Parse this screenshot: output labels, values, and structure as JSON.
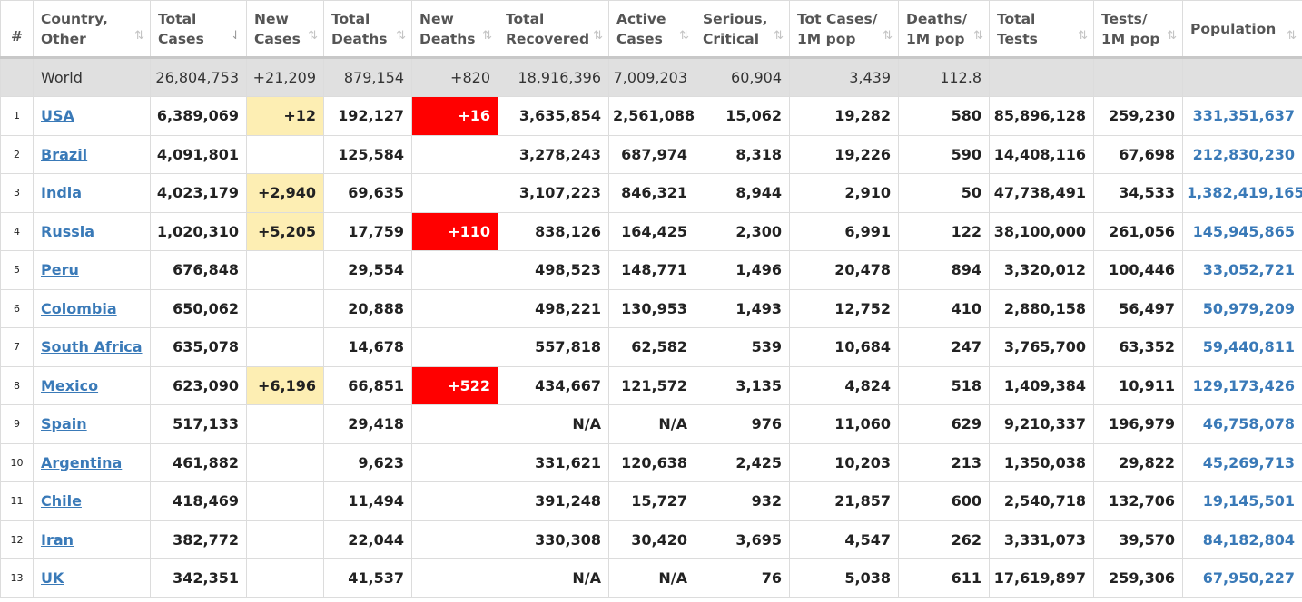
{
  "headers": [
    {
      "label": "#",
      "sort": ""
    },
    {
      "label": "Country,\nOther",
      "sort": "⇅"
    },
    {
      "label": "Total\nCases",
      "sort": "⇃",
      "active": true
    },
    {
      "label": "New\nCases",
      "sort": "⇅"
    },
    {
      "label": "Total\nDeaths",
      "sort": "⇅"
    },
    {
      "label": "New\nDeaths",
      "sort": "⇅"
    },
    {
      "label": "Total\nRecovered",
      "sort": "⇅"
    },
    {
      "label": "Active\nCases",
      "sort": "⇅"
    },
    {
      "label": "Serious,\nCritical",
      "sort": "⇅"
    },
    {
      "label": "Tot Cases/\n1M pop",
      "sort": "⇅"
    },
    {
      "label": "Deaths/\n1M pop",
      "sort": "⇅"
    },
    {
      "label": "Total\nTests",
      "sort": "⇅"
    },
    {
      "label": "Tests/\n1M pop",
      "sort": "⇅"
    },
    {
      "label": "Population",
      "sort": "⇅"
    }
  ],
  "world": {
    "country": "World",
    "total_cases": "26,804,753",
    "new_cases": "+21,209",
    "total_deaths": "879,154",
    "new_deaths": "+820",
    "total_recovered": "18,916,396",
    "active_cases": "7,009,203",
    "serious": "60,904",
    "cases_per_m": "3,439",
    "deaths_per_m": "112.8",
    "total_tests": "",
    "tests_per_m": "",
    "population": ""
  },
  "rows": [
    {
      "idx": "1",
      "country": "USA",
      "total_cases": "6,389,069",
      "new_cases": "+12",
      "total_deaths": "192,127",
      "new_deaths": "+16",
      "total_recovered": "3,635,854",
      "active_cases": "2,561,088",
      "serious": "15,062",
      "cases_per_m": "19,282",
      "deaths_per_m": "580",
      "total_tests": "85,896,128",
      "tests_per_m": "259,230",
      "population": "331,351,637"
    },
    {
      "idx": "2",
      "country": "Brazil",
      "total_cases": "4,091,801",
      "new_cases": "",
      "total_deaths": "125,584",
      "new_deaths": "",
      "total_recovered": "3,278,243",
      "active_cases": "687,974",
      "serious": "8,318",
      "cases_per_m": "19,226",
      "deaths_per_m": "590",
      "total_tests": "14,408,116",
      "tests_per_m": "67,698",
      "population": "212,830,230"
    },
    {
      "idx": "3",
      "country": "India",
      "total_cases": "4,023,179",
      "new_cases": "+2,940",
      "total_deaths": "69,635",
      "new_deaths": "",
      "total_recovered": "3,107,223",
      "active_cases": "846,321",
      "serious": "8,944",
      "cases_per_m": "2,910",
      "deaths_per_m": "50",
      "total_tests": "47,738,491",
      "tests_per_m": "34,533",
      "population": "1,382,419,165"
    },
    {
      "idx": "4",
      "country": "Russia",
      "total_cases": "1,020,310",
      "new_cases": "+5,205",
      "total_deaths": "17,759",
      "new_deaths": "+110",
      "total_recovered": "838,126",
      "active_cases": "164,425",
      "serious": "2,300",
      "cases_per_m": "6,991",
      "deaths_per_m": "122",
      "total_tests": "38,100,000",
      "tests_per_m": "261,056",
      "population": "145,945,865"
    },
    {
      "idx": "5",
      "country": "Peru",
      "total_cases": "676,848",
      "new_cases": "",
      "total_deaths": "29,554",
      "new_deaths": "",
      "total_recovered": "498,523",
      "active_cases": "148,771",
      "serious": "1,496",
      "cases_per_m": "20,478",
      "deaths_per_m": "894",
      "total_tests": "3,320,012",
      "tests_per_m": "100,446",
      "population": "33,052,721"
    },
    {
      "idx": "6",
      "country": "Colombia",
      "total_cases": "650,062",
      "new_cases": "",
      "total_deaths": "20,888",
      "new_deaths": "",
      "total_recovered": "498,221",
      "active_cases": "130,953",
      "serious": "1,493",
      "cases_per_m": "12,752",
      "deaths_per_m": "410",
      "total_tests": "2,880,158",
      "tests_per_m": "56,497",
      "population": "50,979,209"
    },
    {
      "idx": "7",
      "country": "South Africa",
      "total_cases": "635,078",
      "new_cases": "",
      "total_deaths": "14,678",
      "new_deaths": "",
      "total_recovered": "557,818",
      "active_cases": "62,582",
      "serious": "539",
      "cases_per_m": "10,684",
      "deaths_per_m": "247",
      "total_tests": "3,765,700",
      "tests_per_m": "63,352",
      "population": "59,440,811"
    },
    {
      "idx": "8",
      "country": "Mexico",
      "total_cases": "623,090",
      "new_cases": "+6,196",
      "total_deaths": "66,851",
      "new_deaths": "+522",
      "total_recovered": "434,667",
      "active_cases": "121,572",
      "serious": "3,135",
      "cases_per_m": "4,824",
      "deaths_per_m": "518",
      "total_tests": "1,409,384",
      "tests_per_m": "10,911",
      "population": "129,173,426"
    },
    {
      "idx": "9",
      "country": "Spain",
      "total_cases": "517,133",
      "new_cases": "",
      "total_deaths": "29,418",
      "new_deaths": "",
      "total_recovered": "N/A",
      "active_cases": "N/A",
      "serious": "976",
      "cases_per_m": "11,060",
      "deaths_per_m": "629",
      "total_tests": "9,210,337",
      "tests_per_m": "196,979",
      "population": "46,758,078"
    },
    {
      "idx": "10",
      "country": "Argentina",
      "total_cases": "461,882",
      "new_cases": "",
      "total_deaths": "9,623",
      "new_deaths": "",
      "total_recovered": "331,621",
      "active_cases": "120,638",
      "serious": "2,425",
      "cases_per_m": "10,203",
      "deaths_per_m": "213",
      "total_tests": "1,350,038",
      "tests_per_m": "29,822",
      "population": "45,269,713"
    },
    {
      "idx": "11",
      "country": "Chile",
      "total_cases": "418,469",
      "new_cases": "",
      "total_deaths": "11,494",
      "new_deaths": "",
      "total_recovered": "391,248",
      "active_cases": "15,727",
      "serious": "932",
      "cases_per_m": "21,857",
      "deaths_per_m": "600",
      "total_tests": "2,540,718",
      "tests_per_m": "132,706",
      "population": "19,145,501"
    },
    {
      "idx": "12",
      "country": "Iran",
      "total_cases": "382,772",
      "new_cases": "",
      "total_deaths": "22,044",
      "new_deaths": "",
      "total_recovered": "330,308",
      "active_cases": "30,420",
      "serious": "3,695",
      "cases_per_m": "4,547",
      "deaths_per_m": "262",
      "total_tests": "3,331,073",
      "tests_per_m": "39,570",
      "population": "84,182,804"
    },
    {
      "idx": "13",
      "country": "UK",
      "total_cases": "342,351",
      "new_cases": "",
      "total_deaths": "41,537",
      "new_deaths": "",
      "total_recovered": "N/A",
      "active_cases": "N/A",
      "serious": "76",
      "cases_per_m": "5,038",
      "deaths_per_m": "611",
      "total_tests": "17,619,897",
      "tests_per_m": "259,306",
      "population": "67,950,227"
    }
  ],
  "colors": {
    "link": "#3a7ab8",
    "new_cases_highlight": "#fdeeb3",
    "new_deaths_highlight": "#ff0000",
    "world_row_bg": "#e0e0e0"
  }
}
